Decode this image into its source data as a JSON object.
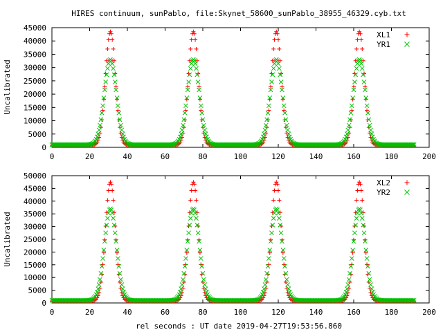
{
  "title": "HIRES continuum, sunPablo, file:Skynet_58600_sunPablo_38955_46329.cyb.txt",
  "xlabel": "rel seconds : UT date 2019-04-27T19:53:56.860",
  "chart_data": [
    {
      "type": "scatter",
      "ylabel": "Uncalibrated",
      "xlim": [
        0,
        200
      ],
      "ylim": [
        0,
        45000
      ],
      "xticks": [
        0,
        20,
        40,
        60,
        80,
        100,
        120,
        140,
        160,
        180,
        200
      ],
      "yticks": [
        0,
        5000,
        10000,
        15000,
        20000,
        25000,
        30000,
        35000,
        40000,
        45000
      ],
      "legend_position": "top-right",
      "peak_centers": [
        31,
        75,
        119,
        163
      ],
      "x_range": [
        0,
        192
      ],
      "sample_step": 0.5,
      "series": [
        {
          "name": "XL1",
          "marker": "+",
          "color": "#ff0000",
          "baseline": 800,
          "peak": 43500,
          "width": 2.6
        },
        {
          "name": "YR1",
          "marker": "x",
          "color": "#00c000",
          "baseline": 1000,
          "peak": 33000,
          "width": 3.2
        }
      ]
    },
    {
      "type": "scatter",
      "ylabel": "Uncalibrated",
      "xlim": [
        0,
        200
      ],
      "ylim": [
        0,
        50000
      ],
      "xticks": [
        0,
        20,
        40,
        60,
        80,
        100,
        120,
        140,
        160,
        180,
        200
      ],
      "yticks": [
        0,
        5000,
        10000,
        15000,
        20000,
        25000,
        30000,
        35000,
        40000,
        45000,
        50000
      ],
      "legend_position": "top-right",
      "peak_centers": [
        31,
        75,
        119,
        163
      ],
      "x_range": [
        0,
        192
      ],
      "sample_step": 0.5,
      "series": [
        {
          "name": "XL2",
          "marker": "+",
          "color": "#ff0000",
          "baseline": 800,
          "peak": 47500,
          "width": 2.6
        },
        {
          "name": "YR2",
          "marker": "x",
          "color": "#00c000",
          "baseline": 1000,
          "peak": 37000,
          "width": 3.2
        }
      ]
    }
  ]
}
